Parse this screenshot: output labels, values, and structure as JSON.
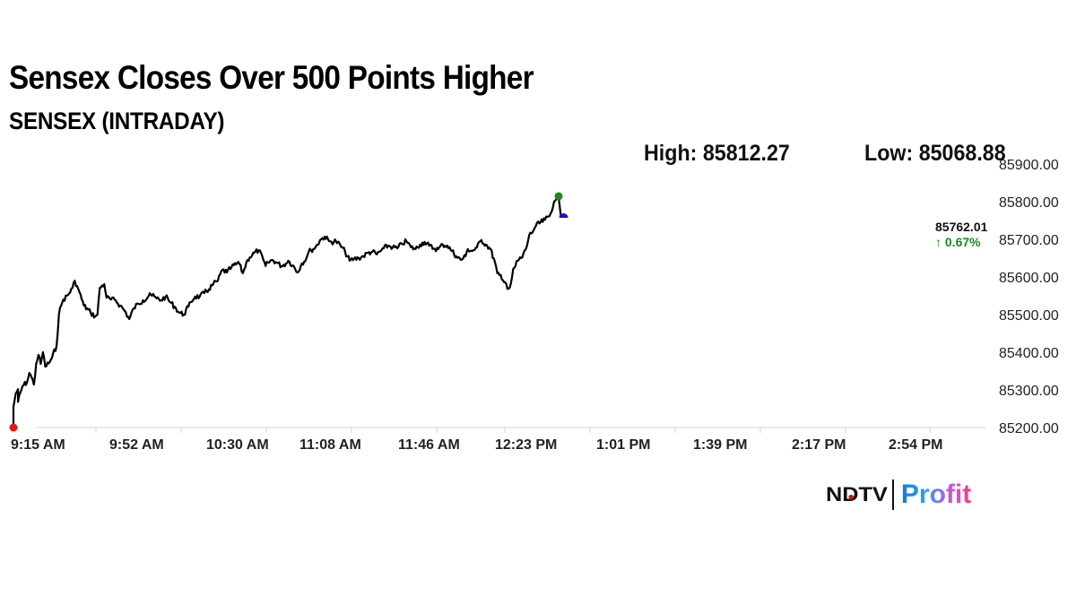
{
  "header": {
    "title": "Sensex Closes Over 500 Points Higher",
    "subtitle": "SENSEX (INTRADAY)",
    "high_label": "High: 85812.27",
    "low_label": "Low: 85068.88"
  },
  "last": {
    "value": "85762.01",
    "change": "↑ 0.67%"
  },
  "brand": {
    "ndtv": "NDTV",
    "profit": "Profit"
  },
  "colors": {
    "line": "#000000",
    "start_marker": "#e8141b",
    "high_marker": "#1a8a1a",
    "last_marker": "#1414c8",
    "change_positive": "#1a8a1a",
    "axis": "#d0d0d0"
  },
  "chart_data": {
    "type": "line",
    "title": "Sensex Closes Over 500 Points Higher",
    "subtitle": "SENSEX (INTRADAY)",
    "xlabel": "",
    "ylabel": "",
    "ylim": [
      85200,
      85900
    ],
    "y_ticks": [
      "85900.00",
      "85800.00",
      "85700.00",
      "85600.00",
      "85500.00",
      "85400.00",
      "85300.00",
      "85200.00"
    ],
    "y_tick_values": [
      85900,
      85800,
      85700,
      85600,
      85500,
      85400,
      85300,
      85200
    ],
    "x_ticks": [
      "9:15 AM",
      "9:52 AM",
      "10:30 AM",
      "11:08 AM",
      "11:46 AM",
      "12:23 PM",
      "1:01 PM",
      "1:39 PM",
      "2:17 PM",
      "2:54 PM"
    ],
    "grid": false,
    "legend": "none",
    "high": 85812.27,
    "low": 85068.88,
    "last": 85762.01,
    "change_pct": 0.67,
    "series": [
      {
        "name": "SENSEX",
        "x_minutes_from_open": [
          0,
          0,
          1,
          2,
          2,
          4,
          6,
          7,
          8,
          9,
          10,
          11,
          12,
          13,
          14,
          16,
          17,
          19,
          20,
          21,
          22,
          24,
          26,
          27,
          28,
          29,
          31,
          34,
          36,
          37,
          38,
          40,
          41,
          43,
          45,
          47,
          49,
          51,
          53,
          55,
          57,
          59,
          60,
          61,
          63,
          65,
          67,
          69,
          71,
          73,
          75,
          77,
          78,
          80,
          82,
          84,
          86,
          88,
          90,
          92,
          94,
          96,
          98,
          99,
          101,
          103,
          104,
          106,
          108,
          110,
          111,
          112,
          114,
          116,
          118,
          120,
          121,
          123,
          125,
          127,
          129,
          130,
          131,
          133,
          135,
          137,
          139,
          140,
          142,
          144,
          146,
          148,
          150,
          152,
          154,
          156,
          158,
          160,
          162,
          163,
          165,
          167,
          169,
          171,
          173,
          175,
          177,
          179,
          181,
          183,
          185,
          187,
          189,
          191,
          193,
          195,
          197,
          199,
          200,
          202,
          204,
          206,
          208,
          210,
          212,
          213,
          214,
          215,
          216,
          217,
          218,
          219,
          220,
          221,
          222,
          224,
          226,
          227,
          229,
          230,
          234,
          236,
          238,
          240,
          241
        ],
        "values": [
          85200,
          85255,
          85290,
          85302,
          85268,
          85310,
          85321,
          85345,
          85333,
          85314,
          85369,
          85393,
          85369,
          85400,
          85362,
          85374,
          85386,
          85417,
          85500,
          85524,
          85540,
          85552,
          85571,
          85590,
          85576,
          85560,
          85524,
          85505,
          85495,
          85500,
          85571,
          85581,
          85545,
          85540,
          85538,
          85524,
          85510,
          85488,
          85517,
          85529,
          85538,
          85545,
          85557,
          85550,
          85543,
          85538,
          85548,
          85533,
          85521,
          85505,
          85500,
          85521,
          85533,
          85548,
          85548,
          85557,
          85567,
          85581,
          85590,
          85619,
          85612,
          85626,
          85633,
          85640,
          85610,
          85645,
          85652,
          85664,
          85671,
          85645,
          85629,
          85638,
          85645,
          85638,
          85629,
          85636,
          85643,
          85631,
          85612,
          85636,
          85650,
          85667,
          85671,
          85679,
          85698,
          85707,
          85695,
          85693,
          85695,
          85683,
          85667,
          85643,
          85648,
          85650,
          85655,
          85664,
          85667,
          85660,
          85671,
          85676,
          85683,
          85679,
          85676,
          85688,
          85695,
          85679,
          85674,
          85686,
          85693,
          85683,
          85676,
          85674,
          85686,
          85683,
          85669,
          85655,
          85645,
          85655,
          85674,
          85669,
          85678,
          85698,
          85686,
          85674,
          85638,
          85610,
          85605,
          85593,
          85586,
          85581,
          85569,
          85583,
          85621,
          85629,
          85643,
          85652,
          85681,
          85710,
          85724,
          85736,
          85752,
          85762,
          85800,
          85812,
          85762
        ]
      }
    ]
  }
}
